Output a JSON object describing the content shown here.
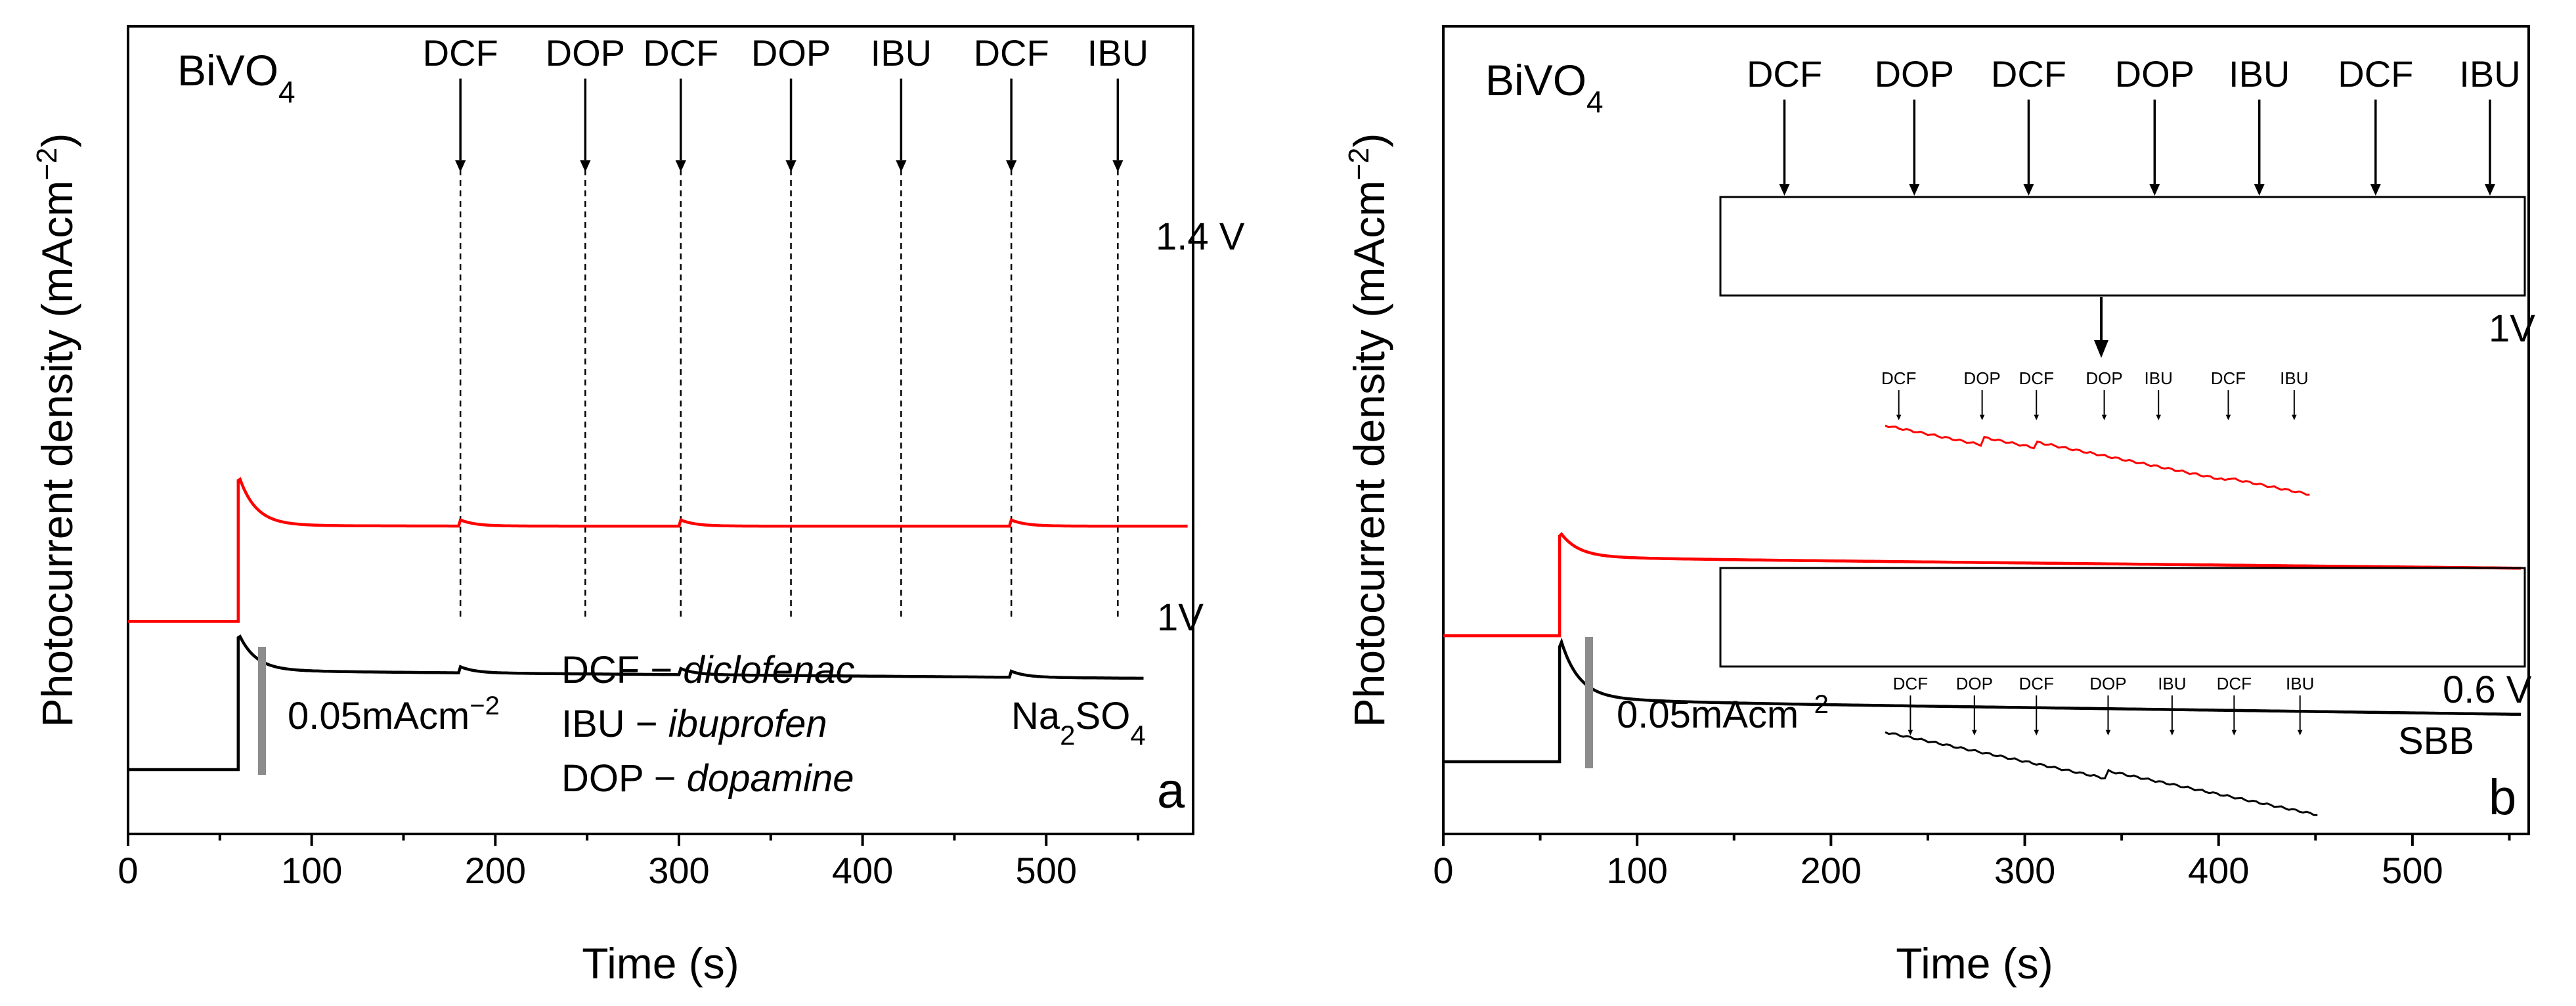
{
  "chart_data": [
    {
      "type": "line",
      "panel_letter": "a",
      "title": "BiVO4",
      "xlabel": "Time (s)",
      "ylabel": "Photocurrent density (mAcm−2)",
      "xlim": [
        0,
        580
      ],
      "xticks": [
        0,
        100,
        200,
        300,
        400,
        500
      ],
      "electrolyte": "Na2SO4",
      "scale_bar": "0.05mAcm−2",
      "injections": [
        {
          "label": "DCF",
          "t": 181
        },
        {
          "label": "DOP",
          "t": 249
        },
        {
          "label": "DCF",
          "t": 301
        },
        {
          "label": "DOP",
          "t": 361
        },
        {
          "label": "IBU",
          "t": 421
        },
        {
          "label": "DCF",
          "t": 481
        },
        {
          "label": "IBU",
          "t": 539
        }
      ],
      "legend": [
        {
          "abbr": "DCF",
          "name": "diclofenac"
        },
        {
          "abbr": "IBU",
          "name": "ibuprofen"
        },
        {
          "abbr": "DOP",
          "name": "dopamine"
        }
      ],
      "series": [
        {
          "name": "1.4 V",
          "color": "#ff0000",
          "dark": 0.146,
          "spike": 0.285,
          "plateau": 0.24,
          "plateau_end": 0.24,
          "relax": 0.242,
          "x_end": 577,
          "bumps": [
            181,
            301,
            481
          ]
        },
        {
          "name": "1V",
          "color": "#000000",
          "dark": 0.0,
          "spike": 0.13,
          "plateau": 0.097,
          "plateau_end": 0.09,
          "relax": 0.099,
          "x_end": 553,
          "bumps": [
            181,
            301,
            481
          ]
        }
      ]
    },
    {
      "type": "line",
      "panel_letter": "b",
      "title": "BiVO4",
      "xlabel": "Time (s)",
      "ylabel": "Photocurrent density (mAcm−2)",
      "xlim": [
        0,
        560
      ],
      "xticks": [
        0,
        100,
        200,
        300,
        400,
        500
      ],
      "electrolyte": "SBB",
      "scale_bar": "0.05mAcm−2",
      "injections": [
        {
          "label": "DCF",
          "t": 176
        },
        {
          "label": "DOP",
          "t": 243
        },
        {
          "label": "DCF",
          "t": 302
        },
        {
          "label": "DOP",
          "t": 367
        },
        {
          "label": "IBU",
          "t": 421
        },
        {
          "label": "DCF",
          "t": 481
        },
        {
          "label": "IBU",
          "t": 540
        }
      ],
      "inset_injections": [
        {
          "label": "DCF",
          "t": 235
        },
        {
          "label": "DOP",
          "t": 278
        },
        {
          "label": "DCF",
          "t": 306
        },
        {
          "label": "DOP",
          "t": 341
        },
        {
          "label": "IBU",
          "t": 369
        },
        {
          "label": "DCF",
          "t": 405
        },
        {
          "label": "IBU",
          "t": 439
        }
      ],
      "inset_injections_lower": [
        {
          "label": "DCF",
          "t": 241
        },
        {
          "label": "DOP",
          "t": 274
        },
        {
          "label": "DCF",
          "t": 306
        },
        {
          "label": "DOP",
          "t": 343
        },
        {
          "label": "IBU",
          "t": 376
        },
        {
          "label": "DCF",
          "t": 408
        },
        {
          "label": "IBU",
          "t": 442
        }
      ],
      "series": [
        {
          "name": "1V",
          "color": "#ff0000",
          "dark": 0.125,
          "spike": 0.224,
          "plateau": 0.202,
          "plateau_end": 0.192,
          "relax": 0.205,
          "x_end": 556,
          "bumps": []
        },
        {
          "name": "0.6 V",
          "color": "#000000",
          "dark": 0.0,
          "spike": 0.114,
          "plateau": 0.06,
          "plateau_end": 0.047,
          "relax": 0.068,
          "x_end": 556,
          "bumps": []
        }
      ]
    }
  ]
}
